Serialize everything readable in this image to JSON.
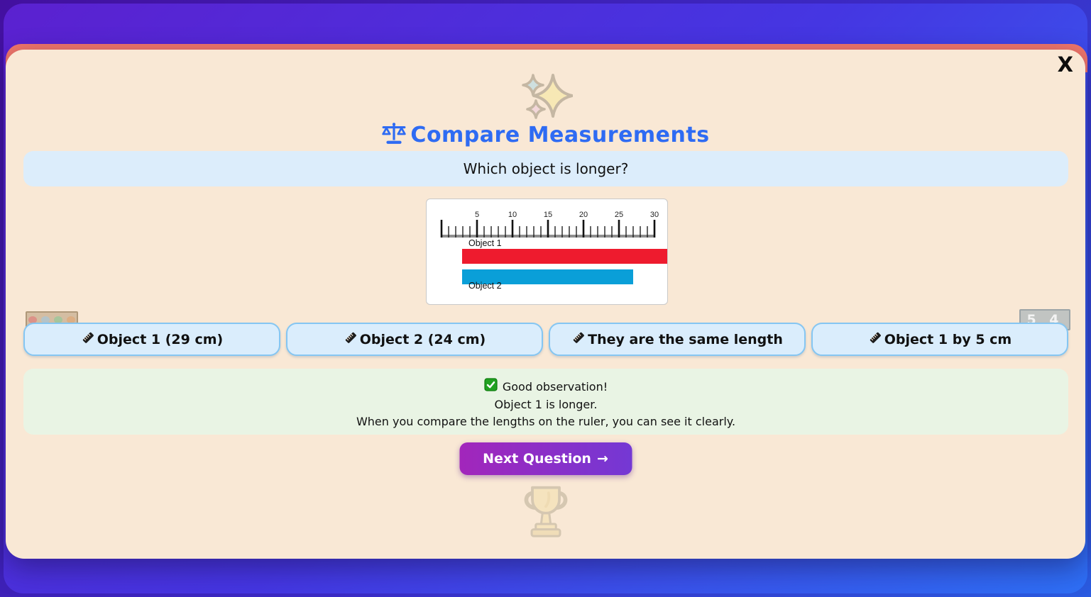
{
  "window": {
    "close_label": "X"
  },
  "header": {
    "title": "Compare Measurements",
    "icon": "balance-scale-icon"
  },
  "question": {
    "text": "Which object is longer?"
  },
  "chart_data": {
    "type": "bar",
    "orientation": "horizontal",
    "title": "",
    "ruler": {
      "min": 0,
      "max": 30,
      "unit": "cm",
      "tick_step": 1,
      "label_step": 5,
      "tick_labels": [
        "5",
        "10",
        "15",
        "20",
        "25",
        "30"
      ]
    },
    "series": [
      {
        "name": "Object 1",
        "value_cm": 29,
        "color": "#ee1b2e"
      },
      {
        "name": "Object 2",
        "value_cm": 24,
        "color": "#0a9fd8"
      }
    ]
  },
  "answers": [
    {
      "label": "Object 1 (29 cm)"
    },
    {
      "label": "Object 2 (24 cm)"
    },
    {
      "label": "They are the same length"
    },
    {
      "label": "Object 1 by 5 cm"
    }
  ],
  "feedback": {
    "line1": "Good observation!",
    "line2": "Object 1 is longer.",
    "line3": "When you compare the lengths on the ruler, you can see it clearly."
  },
  "next_button": {
    "label": "Next Question",
    "arrow": "→"
  },
  "background_widgets": {
    "score_text": "5 4"
  },
  "colors": {
    "title_blue": "#2e6bf3",
    "modal_bg": "#f9e8d5",
    "accent_coral": "#f4786a",
    "answer_bg": "#daedfc",
    "answer_border": "#85c6f2",
    "feedback_bg": "#e9f4e4",
    "next_gradient_start": "#a226bb",
    "next_gradient_end": "#7438d4",
    "object1_color": "#ee1b2e",
    "object2_color": "#0a9fd8"
  }
}
